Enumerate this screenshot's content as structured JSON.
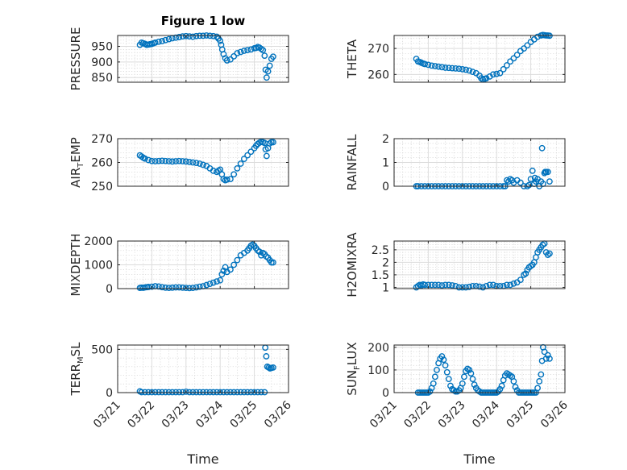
{
  "figure": {
    "title": "Figure 1 low",
    "x_axis_title": "Time",
    "x_tick_labels": [
      "03/21",
      "03/22",
      "03/23",
      "03/24",
      "03/25",
      "03/26"
    ]
  },
  "chart_data": [
    {
      "type": "scatter",
      "ylabel": "PRESSURE",
      "yticks": [
        850,
        900,
        950
      ],
      "ylim": [
        835,
        985
      ],
      "xlim": [
        0,
        5
      ],
      "grid": true,
      "marker_color": "#0072bd",
      "x": [
        0.65,
        0.7,
        0.75,
        0.8,
        0.85,
        0.9,
        0.95,
        1.0,
        1.05,
        1.1,
        1.2,
        1.3,
        1.4,
        1.5,
        1.6,
        1.7,
        1.8,
        1.9,
        2.0,
        2.1,
        2.2,
        2.3,
        2.4,
        2.5,
        2.6,
        2.7,
        2.8,
        2.9,
        2.95,
        3.0,
        3.03,
        3.06,
        3.1,
        3.15,
        3.2,
        3.3,
        3.4,
        3.5,
        3.6,
        3.7,
        3.8,
        3.9,
        4.0,
        4.05,
        4.1,
        4.15,
        4.2,
        4.25,
        4.3,
        4.33,
        4.36,
        4.4,
        4.45,
        4.5,
        4.55
      ],
      "y": [
        955,
        962,
        960,
        958,
        955,
        956,
        957,
        958,
        960,
        962,
        965,
        967,
        970,
        973,
        976,
        978,
        980,
        982,
        983,
        982,
        981,
        983,
        984,
        984,
        985,
        984,
        983,
        981,
        975,
        968,
        955,
        940,
        925,
        912,
        905,
        908,
        918,
        928,
        932,
        936,
        938,
        940,
        944,
        945,
        948,
        946,
        942,
        938,
        920,
        875,
        850,
        870,
        888,
        910,
        917
      ]
    },
    {
      "type": "scatter",
      "ylabel": "THETA",
      "yticks": [
        260,
        270
      ],
      "ylim": [
        257,
        275
      ],
      "xlim": [
        0,
        5
      ],
      "grid": true,
      "marker_color": "#0072bd",
      "x": [
        0.65,
        0.7,
        0.75,
        0.8,
        0.85,
        0.9,
        1.0,
        1.1,
        1.2,
        1.3,
        1.4,
        1.5,
        1.6,
        1.7,
        1.8,
        1.9,
        2.0,
        2.1,
        2.2,
        2.3,
        2.4,
        2.5,
        2.55,
        2.6,
        2.65,
        2.7,
        2.8,
        2.9,
        3.0,
        3.1,
        3.2,
        3.3,
        3.4,
        3.5,
        3.6,
        3.7,
        3.8,
        3.9,
        4.0,
        4.1,
        4.2,
        4.3,
        4.35,
        4.4,
        4.45,
        4.5,
        4.55
      ],
      "y": [
        266,
        265,
        264.8,
        264.5,
        264.2,
        264,
        263.7,
        263.4,
        263.2,
        263,
        262.8,
        262.6,
        262.5,
        262.4,
        262.3,
        262.2,
        262,
        261.8,
        261.5,
        261,
        260.5,
        259.5,
        258.5,
        258,
        258.3,
        258.5,
        259.2,
        260,
        260.2,
        260.5,
        262,
        263.5,
        265,
        266.2,
        267.5,
        269,
        270,
        271.2,
        272.5,
        273.5,
        274.5,
        275,
        275.2,
        275.1,
        275,
        275,
        274.9
      ]
    },
    {
      "type": "scatter",
      "ylabel": "AIR_TEMP",
      "ylabel_main": "AIR",
      "ylabel_sub": "T",
      "ylabel_rest": "EMP",
      "yticks": [
        250,
        260,
        270
      ],
      "ylim": [
        250,
        270
      ],
      "xlim": [
        0,
        5
      ],
      "grid": true,
      "marker_color": "#0072bd",
      "x": [
        0.65,
        0.7,
        0.75,
        0.8,
        0.9,
        1.0,
        1.1,
        1.2,
        1.3,
        1.4,
        1.5,
        1.6,
        1.7,
        1.8,
        1.9,
        2.0,
        2.1,
        2.2,
        2.3,
        2.4,
        2.5,
        2.6,
        2.7,
        2.8,
        2.9,
        2.95,
        3.0,
        3.05,
        3.1,
        3.15,
        3.2,
        3.3,
        3.4,
        3.5,
        3.6,
        3.7,
        3.8,
        3.9,
        4.0,
        4.05,
        4.1,
        4.15,
        4.2,
        4.25,
        4.3,
        4.33,
        4.36,
        4.4,
        4.45,
        4.5,
        4.55
      ],
      "y": [
        263,
        262.5,
        262,
        261.6,
        261,
        260.6,
        260.5,
        260.6,
        260.7,
        260.6,
        260.5,
        260.4,
        260.5,
        260.6,
        260.5,
        260.4,
        260.2,
        260,
        259.8,
        259.5,
        259,
        258.5,
        257.5,
        256.5,
        256,
        256.5,
        257,
        255,
        253,
        252.5,
        252.8,
        253,
        255,
        257.5,
        259.5,
        261.5,
        263,
        264.5,
        266,
        267,
        267.8,
        268.3,
        268.7,
        268.5,
        268.2,
        265.5,
        262.7,
        266,
        268,
        268.5,
        268.5
      ]
    },
    {
      "type": "scatter",
      "ylabel": "RAINFALL",
      "yticks": [
        0,
        1,
        2
      ],
      "ylim": [
        0,
        2
      ],
      "xlim": [
        0,
        5
      ],
      "grid": true,
      "marker_color": "#0072bd",
      "x": [
        0.65,
        0.7,
        0.8,
        0.9,
        1.0,
        1.1,
        1.2,
        1.3,
        1.4,
        1.5,
        1.6,
        1.7,
        1.8,
        1.9,
        2.0,
        2.1,
        2.2,
        2.3,
        2.4,
        2.5,
        2.6,
        2.7,
        2.8,
        2.9,
        3.0,
        3.1,
        3.2,
        3.25,
        3.3,
        3.35,
        3.4,
        3.45,
        3.5,
        3.6,
        3.7,
        3.8,
        3.9,
        3.95,
        4.0,
        4.05,
        4.1,
        4.12,
        4.15,
        4.2,
        4.25,
        4.3,
        4.33,
        4.36,
        4.4,
        4.42,
        4.45,
        4.5,
        4.55
      ],
      "y": [
        0,
        0,
        0,
        0,
        0,
        0,
        0,
        0,
        0,
        0,
        0,
        0,
        0,
        0,
        0,
        0,
        0,
        0,
        0,
        0,
        0,
        0,
        0,
        0,
        0,
        0,
        0,
        0,
        0.25,
        0.2,
        0.3,
        0.25,
        0.15,
        0.25,
        0.15,
        0,
        0,
        0.05,
        0.3,
        0.65,
        0.1,
        0.35,
        0.2,
        0.3,
        0,
        0.2,
        1.6,
        0.1,
        0.55,
        0.6,
        0.6,
        0.6,
        0.2
      ]
    },
    {
      "type": "scatter",
      "ylabel": "MIXDEPTH",
      "yticks": [
        0,
        1000,
        2000
      ],
      "ylim": [
        0,
        2000
      ],
      "xlim": [
        0,
        5
      ],
      "grid": true,
      "marker_color": "#0072bd",
      "x": [
        0.65,
        0.7,
        0.75,
        0.8,
        0.85,
        0.9,
        1.0,
        1.1,
        1.2,
        1.3,
        1.4,
        1.5,
        1.6,
        1.7,
        1.8,
        1.9,
        2.0,
        2.1,
        2.2,
        2.3,
        2.4,
        2.5,
        2.6,
        2.7,
        2.8,
        2.9,
        3.0,
        3.05,
        3.1,
        3.15,
        3.2,
        3.3,
        3.4,
        3.5,
        3.6,
        3.7,
        3.8,
        3.85,
        3.9,
        3.95,
        4.0,
        4.05,
        4.1,
        4.15,
        4.2,
        4.25,
        4.3,
        4.35,
        4.4,
        4.45,
        4.5,
        4.55
      ],
      "y": [
        30,
        40,
        35,
        50,
        60,
        70,
        80,
        100,
        90,
        60,
        40,
        30,
        40,
        50,
        50,
        40,
        30,
        20,
        30,
        50,
        80,
        100,
        150,
        200,
        250,
        300,
        350,
        600,
        750,
        900,
        700,
        800,
        1000,
        1200,
        1400,
        1500,
        1600,
        1700,
        1800,
        1850,
        1800,
        1700,
        1600,
        1550,
        1400,
        1500,
        1450,
        1350,
        1300,
        1200,
        1100,
        1100
      ]
    },
    {
      "type": "scatter",
      "ylabel": "H2OMIXRA",
      "yticks": [
        1,
        1.5,
        2,
        2.5
      ],
      "ylim": [
        0.95,
        2.85
      ],
      "xlim": [
        0,
        5
      ],
      "grid": true,
      "marker_color": "#0072bd",
      "x": [
        0.65,
        0.7,
        0.75,
        0.8,
        0.85,
        0.9,
        1.0,
        1.1,
        1.2,
        1.3,
        1.4,
        1.5,
        1.6,
        1.7,
        1.8,
        1.9,
        2.0,
        2.1,
        2.2,
        2.3,
        2.4,
        2.5,
        2.6,
        2.7,
        2.8,
        2.9,
        3.0,
        3.1,
        3.2,
        3.3,
        3.4,
        3.5,
        3.6,
        3.7,
        3.8,
        3.85,
        3.9,
        3.95,
        4.0,
        4.05,
        4.1,
        4.15,
        4.2,
        4.25,
        4.3,
        4.35,
        4.4,
        4.45,
        4.5,
        4.55
      ],
      "y": [
        1.0,
        1.05,
        1.1,
        1.08,
        1.12,
        1.1,
        1.1,
        1.1,
        1.1,
        1.1,
        1.08,
        1.1,
        1.1,
        1.08,
        1.05,
        1.0,
        1.0,
        1.0,
        1.02,
        1.05,
        1.05,
        1.03,
        1.0,
        1.05,
        1.1,
        1.1,
        1.05,
        1.05,
        1.05,
        1.1,
        1.1,
        1.15,
        1.2,
        1.3,
        1.5,
        1.55,
        1.7,
        1.8,
        1.85,
        1.9,
        2.0,
        2.2,
        2.4,
        2.5,
        2.6,
        2.7,
        2.75,
        2.4,
        2.3,
        2.35
      ]
    },
    {
      "type": "scatter",
      "ylabel": "TERR_MSL",
      "ylabel_main": "TERR",
      "ylabel_sub": "M",
      "ylabel_rest": "SL",
      "yticks": [
        0,
        500
      ],
      "ylim": [
        0,
        550
      ],
      "xlim": [
        0,
        5
      ],
      "grid": true,
      "marker_color": "#0072bd",
      "x": [
        0.65,
        0.7,
        0.8,
        0.9,
        1.0,
        1.1,
        1.2,
        1.3,
        1.4,
        1.5,
        1.6,
        1.7,
        1.8,
        1.9,
        2.0,
        2.1,
        2.2,
        2.3,
        2.4,
        2.5,
        2.6,
        2.7,
        2.8,
        2.9,
        3.0,
        3.1,
        3.2,
        3.3,
        3.4,
        3.5,
        3.6,
        3.7,
        3.8,
        3.9,
        4.0,
        4.1,
        4.2,
        4.3,
        4.32,
        4.35,
        4.38,
        4.42,
        4.46,
        4.5,
        4.55
      ],
      "y": [
        15,
        5,
        5,
        5,
        5,
        5,
        5,
        5,
        5,
        5,
        5,
        5,
        5,
        5,
        10,
        5,
        5,
        5,
        5,
        5,
        5,
        5,
        5,
        5,
        5,
        5,
        5,
        5,
        5,
        5,
        5,
        5,
        5,
        5,
        5,
        5,
        5,
        5,
        520,
        420,
        300,
        290,
        280,
        285,
        290
      ]
    },
    {
      "type": "scatter",
      "ylabel": "SUN_FLUX",
      "ylabel_main": "SUN",
      "ylabel_sub": "F",
      "ylabel_rest": "LUX",
      "yticks": [
        0,
        100,
        200
      ],
      "ylim": [
        0,
        210
      ],
      "xlim": [
        0,
        5
      ],
      "grid": true,
      "marker_color": "#0072bd",
      "x": [
        0.7,
        0.75,
        0.8,
        0.85,
        0.9,
        0.95,
        1.0,
        1.05,
        1.1,
        1.15,
        1.2,
        1.25,
        1.3,
        1.35,
        1.4,
        1.45,
        1.5,
        1.55,
        1.6,
        1.65,
        1.7,
        1.75,
        1.8,
        1.85,
        1.9,
        1.95,
        2.0,
        2.05,
        2.1,
        2.15,
        2.2,
        2.25,
        2.3,
        2.35,
        2.4,
        2.45,
        2.5,
        2.55,
        2.6,
        2.65,
        2.7,
        2.75,
        2.8,
        2.85,
        2.9,
        2.95,
        3.0,
        3.05,
        3.1,
        3.15,
        3.2,
        3.25,
        3.3,
        3.35,
        3.4,
        3.45,
        3.5,
        3.55,
        3.6,
        3.65,
        3.7,
        3.75,
        3.8,
        3.85,
        3.9,
        3.95,
        4.0,
        4.05,
        4.1,
        4.15,
        4.2,
        4.25,
        4.3,
        4.33,
        4.36,
        4.4,
        4.45,
        4.5,
        4.55
      ],
      "y": [
        0,
        0,
        0,
        0,
        0,
        0,
        0,
        5,
        20,
        40,
        70,
        100,
        130,
        150,
        160,
        145,
        120,
        90,
        60,
        30,
        15,
        10,
        5,
        5,
        10,
        20,
        40,
        70,
        95,
        105,
        100,
        85,
        60,
        35,
        20,
        10,
        5,
        0,
        0,
        0,
        0,
        0,
        0,
        0,
        0,
        0,
        0,
        5,
        15,
        30,
        55,
        75,
        85,
        80,
        75,
        70,
        50,
        25,
        10,
        0,
        0,
        0,
        0,
        0,
        0,
        0,
        0,
        0,
        0,
        0,
        20,
        50,
        80,
        140,
        200,
        180,
        150,
        165,
        150
      ]
    }
  ]
}
